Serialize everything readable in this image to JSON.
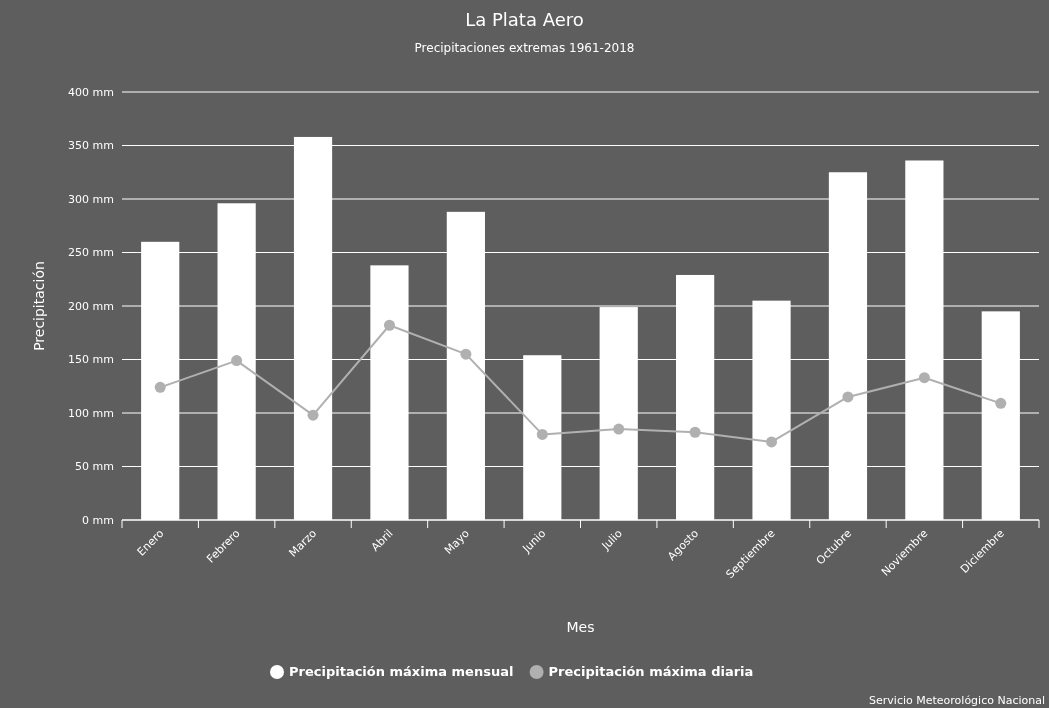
{
  "chart_data": {
    "type": "bar",
    "title": "La Plata Aero",
    "subtitle": "Precipitaciones extremas 1961-2018",
    "xlabel": "Mes",
    "ylabel": "Precipitación",
    "categories": [
      "Enero",
      "Febrero",
      "Marzo",
      "Abril",
      "Mayo",
      "Junio",
      "Julio",
      "Agosto",
      "Septiembre",
      "Octubre",
      "Noviembre",
      "Diciembre"
    ],
    "series": [
      {
        "name": "Precipitación máxima mensual",
        "color": "#ffffff",
        "values": [
          260,
          296,
          358,
          238,
          288,
          154,
          199,
          229,
          205,
          325,
          336,
          195
        ]
      },
      {
        "name": "Precipitación máxima diaria",
        "type": "line",
        "color": "#b0b0b0",
        "values": [
          124,
          149,
          98,
          182,
          155,
          80,
          85,
          82,
          73,
          115,
          133,
          109
        ]
      }
    ],
    "ylim": [
      0,
      400
    ],
    "yticks": [
      {
        "value": 0,
        "label": "0 mm"
      },
      {
        "value": 50,
        "label": "50 mm"
      },
      {
        "value": 100,
        "label": "100 mm"
      },
      {
        "value": 150,
        "label": "150 mm"
      },
      {
        "value": 200,
        "label": "200 mm"
      },
      {
        "value": 250,
        "label": "250 mm"
      },
      {
        "value": 300,
        "label": "300 mm"
      },
      {
        "value": 350,
        "label": "350 mm"
      },
      {
        "value": 400,
        "label": "400 mm"
      }
    ],
    "grid": "y",
    "legend": "bottom",
    "marker": "circle",
    "line_style": "solid",
    "annotations": [
      "Servicio Meteorológico Nacional"
    ]
  }
}
